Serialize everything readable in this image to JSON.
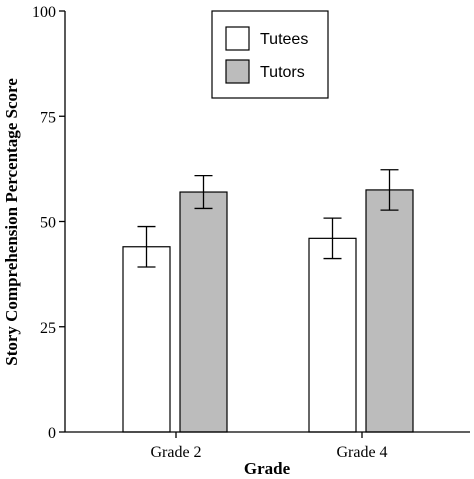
{
  "chart_data": {
    "type": "bar",
    "title": "",
    "xlabel": "Grade",
    "ylabel": "Story Comprehension Percentage Score",
    "categories": [
      "Grade 2",
      "Grade 4"
    ],
    "ylim": [
      0,
      100
    ],
    "yticks": [
      "0",
      "25",
      "50",
      "75",
      "100"
    ],
    "legend_position": "top-right",
    "grid": false,
    "series": [
      {
        "name": "Tutees",
        "values": [
          44,
          46
        ],
        "error": [
          4.8,
          4.8
        ],
        "color": "#ffffff"
      },
      {
        "name": "Tutors",
        "values": [
          57,
          57.5
        ],
        "error": [
          3.9,
          4.8
        ],
        "color": "#bcbcbc"
      }
    ]
  }
}
